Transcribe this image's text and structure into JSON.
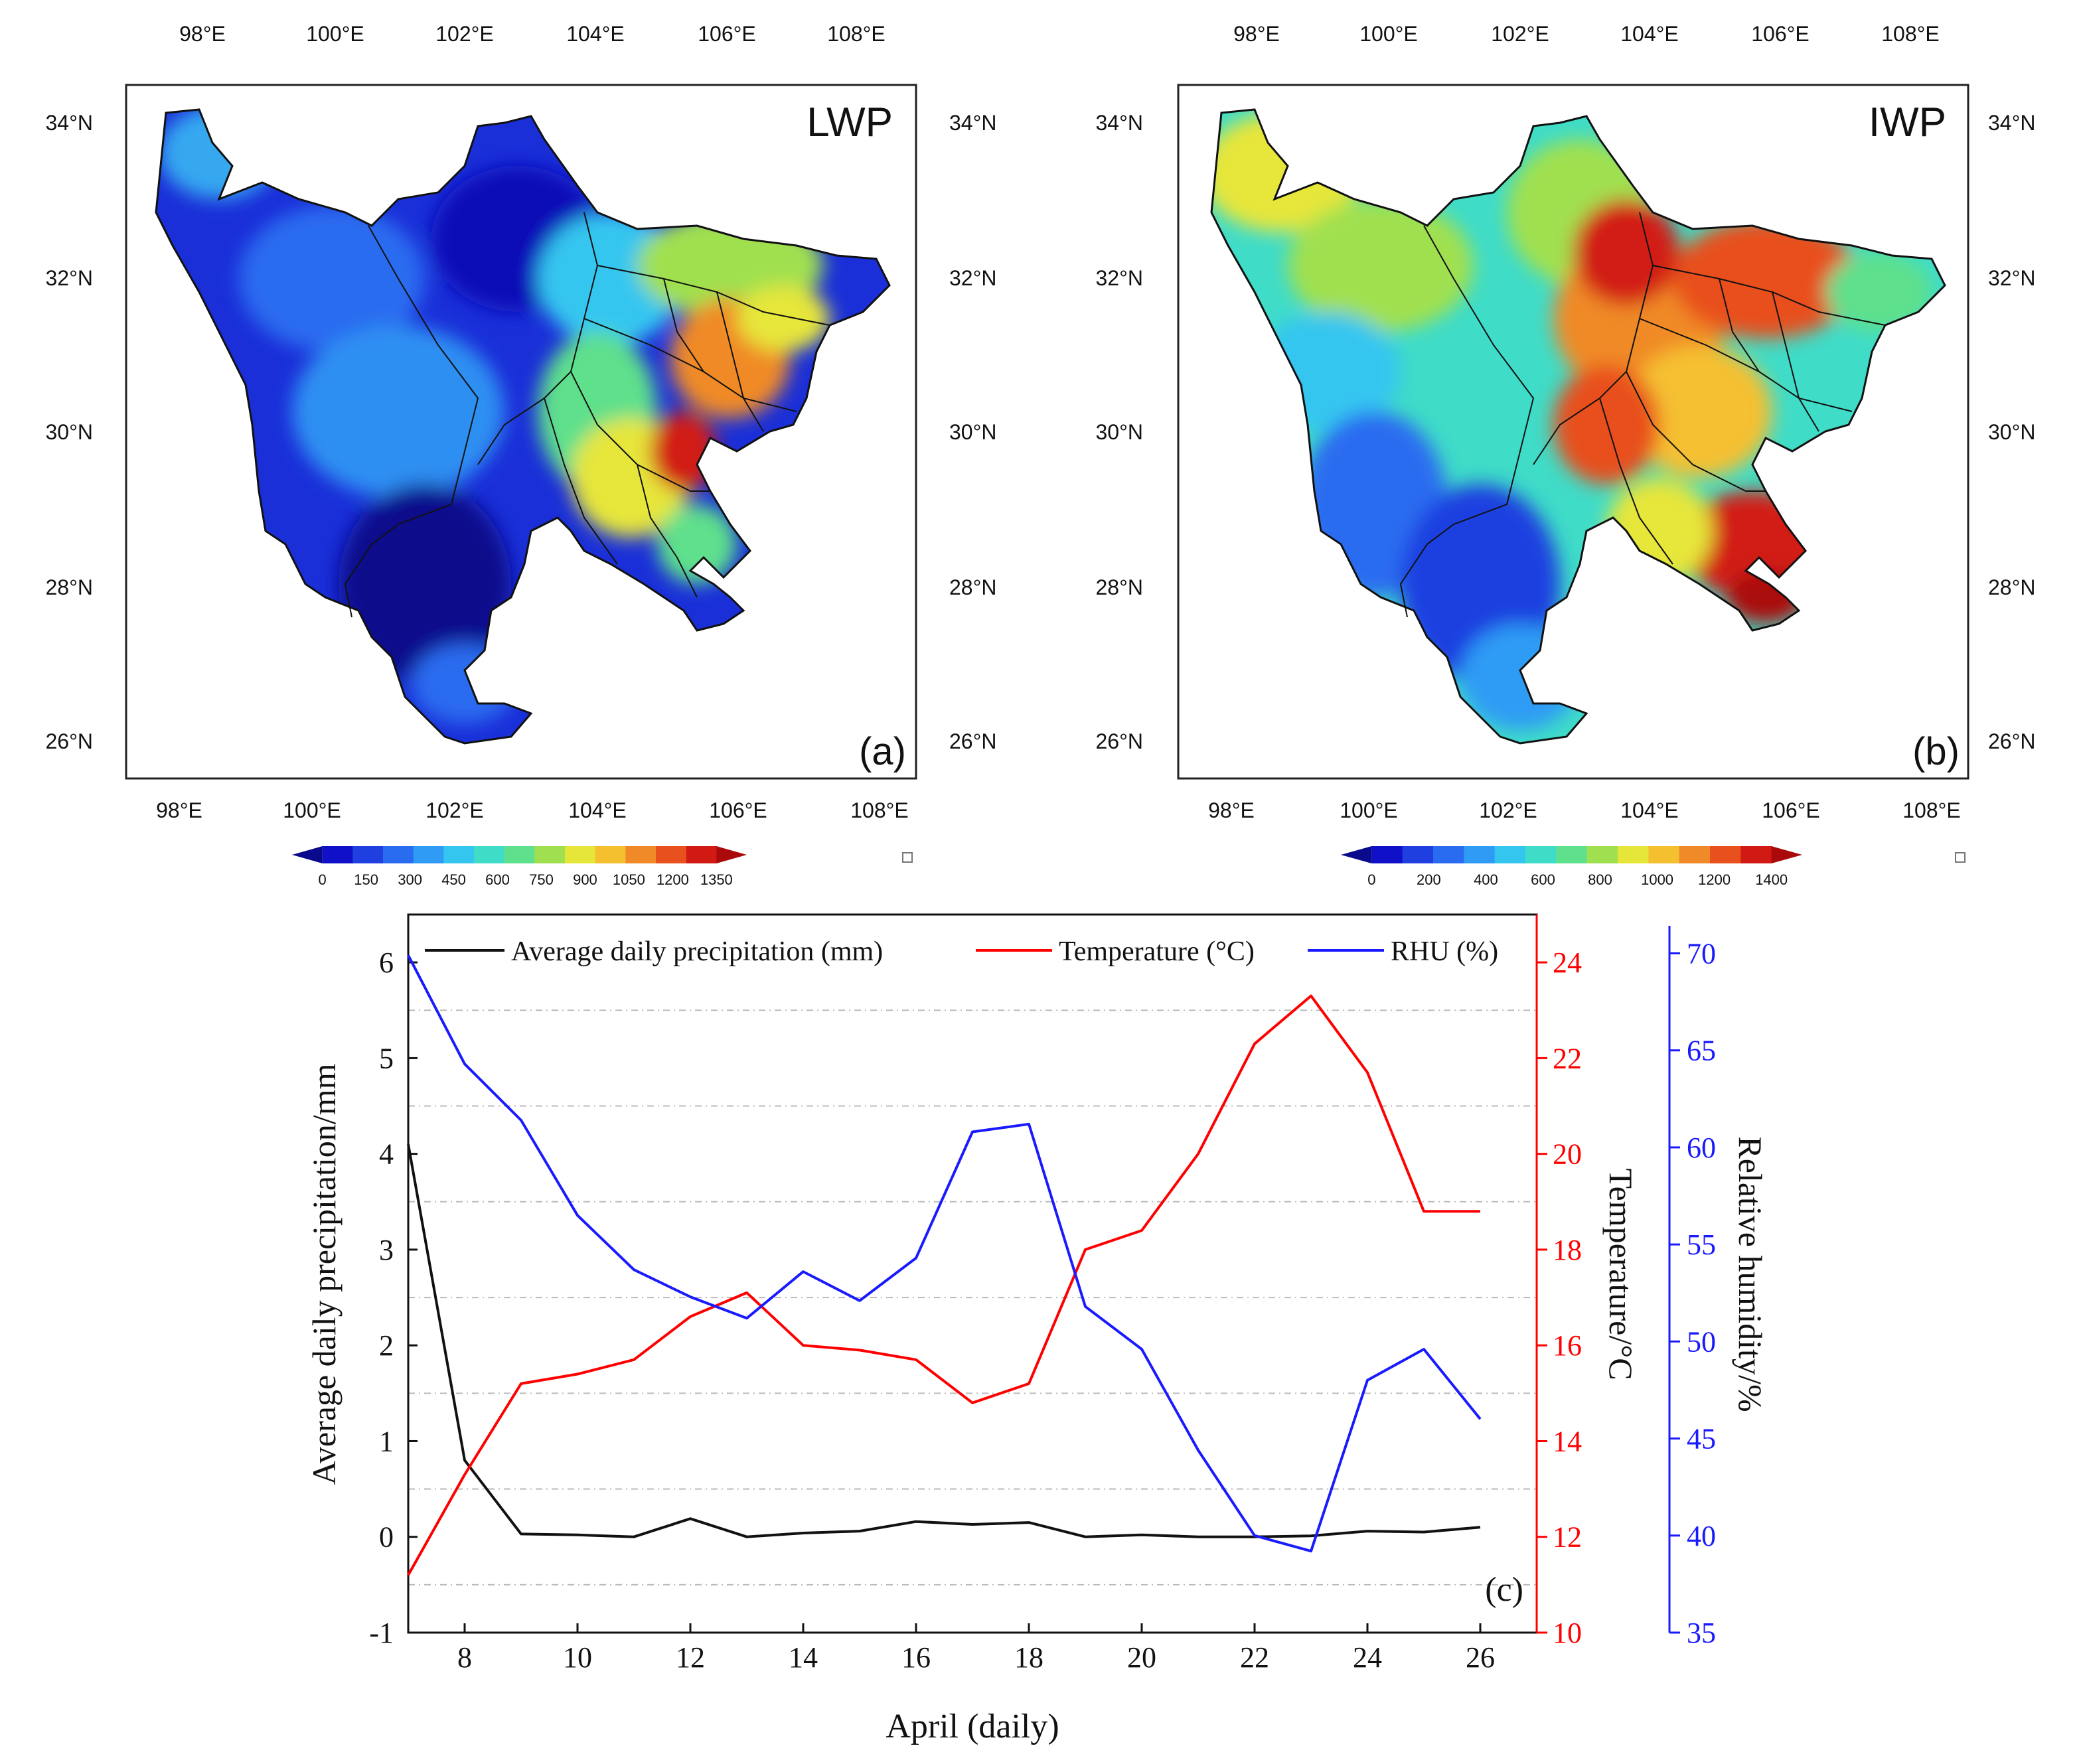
{
  "colors": {
    "black": "#111111",
    "red": "#ff0000",
    "blue": "#1a1aff",
    "grid": "#bbbbbb"
  },
  "colorscale": [
    "#0a0a8c",
    "#1010c8",
    "#1f3fe0",
    "#2a6cf0",
    "#2f9bf5",
    "#35c6f0",
    "#3fdcc8",
    "#5ee08c",
    "#a0e050",
    "#e6e63a",
    "#f5c030",
    "#f08a28",
    "#e8501e",
    "#d21a14",
    "#aa0a0a"
  ],
  "maps": [
    {
      "id": "a",
      "title": "LWP",
      "panel_label": "(a)",
      "lon_ticks": [
        "98°E",
        "100°E",
        "102°E",
        "104°E",
        "106°E",
        "108°E"
      ],
      "lat_ticks": [
        "34°N",
        "32°N",
        "30°N",
        "28°N",
        "26°N"
      ],
      "colorbar_labels": [
        "0",
        "150",
        "300",
        "450",
        "600",
        "750",
        "900",
        "1050",
        "1200",
        "1350"
      ]
    },
    {
      "id": "b",
      "title": "IWP",
      "panel_label": "(b)",
      "lon_ticks": [
        "98°E",
        "100°E",
        "102°E",
        "104°E",
        "106°E",
        "108°E"
      ],
      "lat_ticks": [
        "34°N",
        "32°N",
        "30°N",
        "28°N",
        "26°N"
      ],
      "colorbar_labels": [
        "0",
        "200",
        "400",
        "600",
        "800",
        "1000",
        "1200",
        "1400"
      ]
    }
  ],
  "chart_data": {
    "type": "line",
    "panel_label": "(c)",
    "xlabel": "April (daily)",
    "x": [
      7,
      8,
      9,
      10,
      11,
      12,
      13,
      14,
      15,
      16,
      17,
      18,
      19,
      20,
      21,
      22,
      23,
      24,
      25,
      26
    ],
    "xlim": [
      7,
      27
    ],
    "xticks": [
      "8",
      "10",
      "12",
      "14",
      "16",
      "18",
      "20",
      "22",
      "24",
      "26"
    ],
    "grid": "dashed horizontal",
    "legend_position": "top",
    "axes": {
      "left": {
        "label": "Average daily precipitation/mm",
        "lim": [
          -1,
          6.5
        ],
        "ticks": [
          "-1",
          "0",
          "1",
          "2",
          "3",
          "4",
          "5",
          "6"
        ]
      },
      "right1": {
        "label": "Temperature/°C",
        "lim": [
          10,
          25
        ],
        "ticks": [
          "10",
          "12",
          "14",
          "16",
          "18",
          "20",
          "22",
          "24"
        ]
      },
      "right2": {
        "label": "Relative humidity/%",
        "lim": [
          35,
          72
        ],
        "ticks": [
          "35",
          "40",
          "45",
          "50",
          "55",
          "60",
          "65",
          "70"
        ]
      }
    },
    "series": [
      {
        "name": "Average daily precipitation (mm)",
        "axis": "left",
        "values": [
          4.1,
          0.8,
          0.03,
          0.02,
          0.0,
          0.19,
          0.0,
          0.04,
          0.06,
          0.16,
          0.13,
          0.15,
          0.0,
          0.02,
          0.0,
          0.0,
          0.01,
          0.06,
          0.05,
          0.1
        ]
      },
      {
        "name": "Temperature (°C)",
        "axis": "right1",
        "values": [
          11.2,
          13.3,
          15.2,
          15.4,
          15.7,
          16.6,
          17.1,
          16.0,
          15.9,
          15.7,
          14.8,
          15.2,
          18.0,
          18.4,
          20.0,
          22.3,
          23.3,
          21.7,
          18.8,
          18.8
        ]
      },
      {
        "name": "RHU (%)",
        "axis": "right2",
        "values": [
          69.9,
          64.3,
          61.4,
          56.5,
          53.7,
          52.3,
          51.2,
          53.6,
          52.1,
          54.3,
          60.8,
          61.2,
          51.8,
          49.6,
          44.4,
          40.0,
          39.2,
          48.0,
          49.6,
          46.0
        ]
      }
    ]
  }
}
